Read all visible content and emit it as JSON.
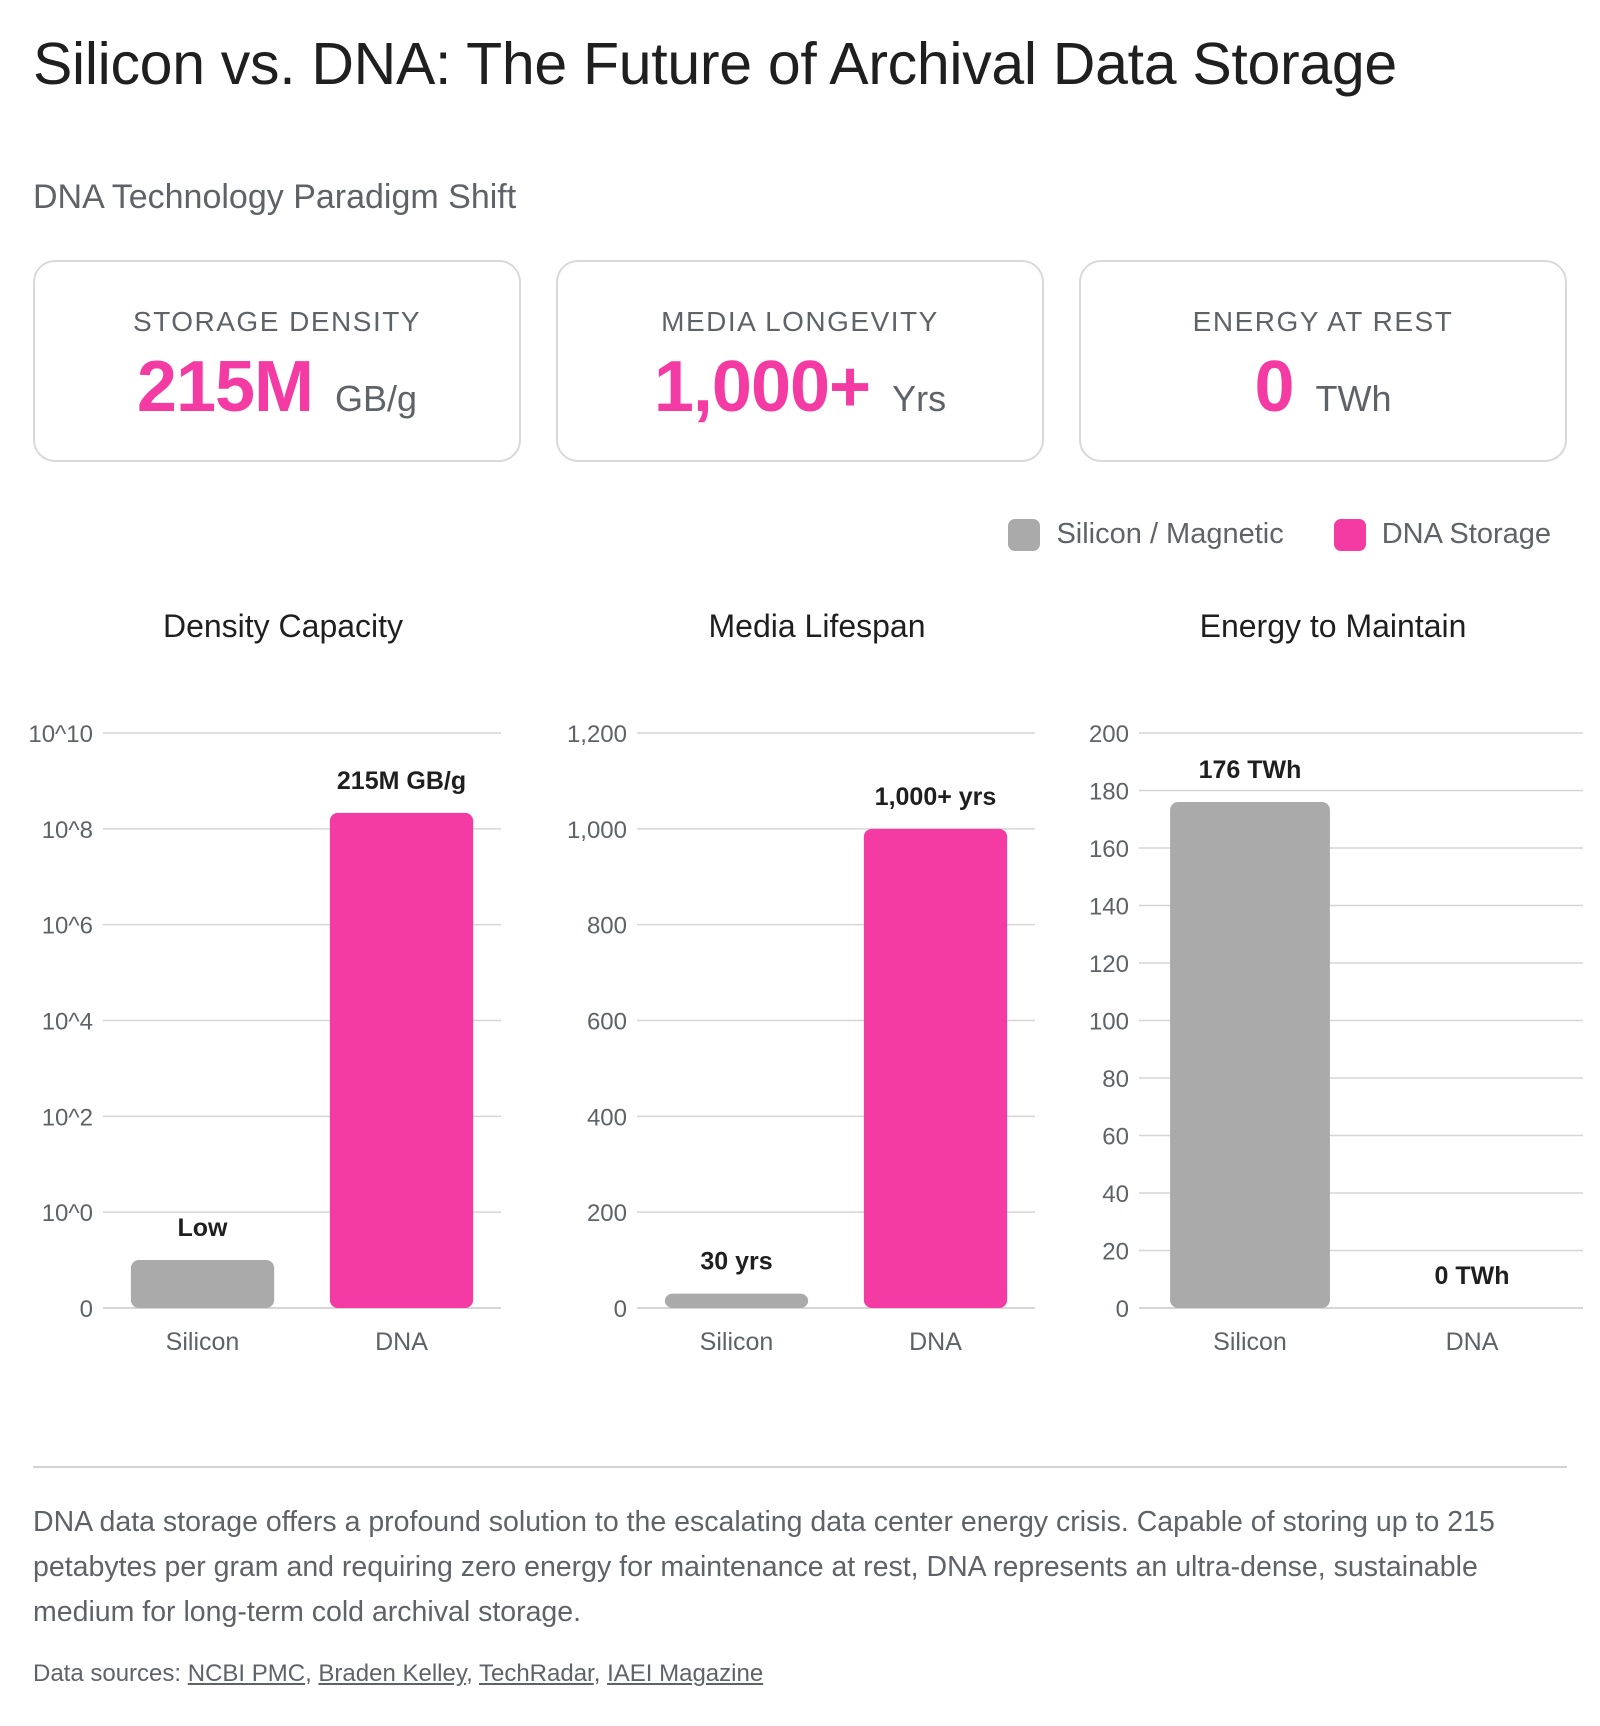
{
  "title": "Silicon vs. DNA: The Future of Archival Data Storage",
  "subtitle": "DNA Technology Paradigm Shift",
  "cards": [
    {
      "label": "STORAGE DENSITY",
      "value": "215M",
      "unit": "GB/g"
    },
    {
      "label": "MEDIA LONGEVITY",
      "value": "1,000+",
      "unit": "Yrs"
    },
    {
      "label": "ENERGY AT REST",
      "value": "0",
      "unit": "TWh"
    }
  ],
  "legend": [
    {
      "name": "Silicon / Magnetic",
      "color": "#aaaaaa"
    },
    {
      "name": "DNA Storage",
      "color": "#f43aa3"
    }
  ],
  "chart_data": [
    {
      "type": "bar",
      "title": "Density Capacity",
      "scale": "log",
      "categories": [
        "Silicon",
        "DNA"
      ],
      "values": [
        1,
        215000000
      ],
      "data_labels": [
        "Low",
        "215M GB/g"
      ],
      "colors": [
        "#aaaaaa",
        "#f43aa3"
      ],
      "yticks": [
        "0",
        "10^0",
        "10^2",
        "10^4",
        "10^6",
        "10^8",
        "10^10"
      ],
      "ylim": [
        0,
        10000000000
      ],
      "grid": true
    },
    {
      "type": "bar",
      "title": "Media Lifespan",
      "scale": "linear",
      "categories": [
        "Silicon",
        "DNA"
      ],
      "values": [
        30,
        1000
      ],
      "data_labels": [
        "30 yrs",
        "1,000+ yrs"
      ],
      "colors": [
        "#aaaaaa",
        "#f43aa3"
      ],
      "yticks": [
        "0",
        "200",
        "400",
        "600",
        "800",
        "1,000",
        "1,200"
      ],
      "ylim": [
        0,
        1200
      ],
      "grid": true
    },
    {
      "type": "bar",
      "title": "Energy to Maintain",
      "scale": "linear",
      "categories": [
        "Silicon",
        "DNA"
      ],
      "values": [
        176,
        0
      ],
      "data_labels": [
        "176 TWh",
        "0 TWh"
      ],
      "colors": [
        "#aaaaaa",
        "#f43aa3"
      ],
      "yticks": [
        "0",
        "20",
        "40",
        "60",
        "80",
        "100",
        "120",
        "140",
        "160",
        "180",
        "200"
      ],
      "ylim": [
        0,
        200
      ],
      "grid": true
    }
  ],
  "description": "DNA data storage offers a profound solution to the escalating data center energy crisis. Capable of storing up to 215 petabytes per gram and requiring zero energy for maintenance at rest, DNA represents an ultra-dense, sustainable medium for long-term cold archival storage.",
  "sources": {
    "prefix": "Data sources: ",
    "links": [
      "NCBI PMC",
      "Braden Kelley",
      "TechRadar",
      "IAEI Magazine"
    ]
  }
}
